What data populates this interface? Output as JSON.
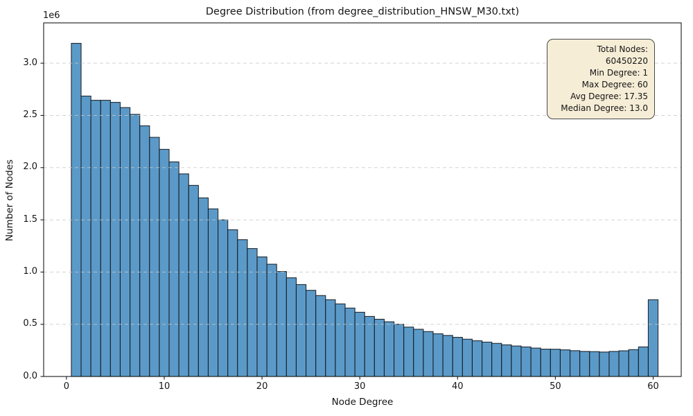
{
  "chart_data": {
    "type": "bar",
    "title": "Degree Distribution (from degree_distribution_HNSW_M30.txt)",
    "xlabel": "Node Degree",
    "ylabel": "Number of Nodes",
    "offset_label": "1e6",
    "x": [
      1,
      2,
      3,
      4,
      5,
      6,
      7,
      8,
      9,
      10,
      11,
      12,
      13,
      14,
      15,
      16,
      17,
      18,
      19,
      20,
      21,
      22,
      23,
      24,
      25,
      26,
      27,
      28,
      29,
      30,
      31,
      32,
      33,
      34,
      35,
      36,
      37,
      38,
      39,
      40,
      41,
      42,
      43,
      44,
      45,
      46,
      47,
      48,
      49,
      50,
      51,
      52,
      53,
      54,
      55,
      56,
      57,
      58,
      59,
      60
    ],
    "values": [
      3190000,
      2685000,
      2645000,
      2645000,
      2625000,
      2575000,
      2510000,
      2400000,
      2290000,
      2175000,
      2055000,
      1940000,
      1830000,
      1710000,
      1605000,
      1500000,
      1405000,
      1310000,
      1225000,
      1145000,
      1075000,
      1005000,
      945000,
      880000,
      825000,
      775000,
      735000,
      695000,
      655000,
      615000,
      575000,
      548000,
      524000,
      500000,
      473000,
      452000,
      430000,
      409000,
      393000,
      375000,
      357000,
      342000,
      329000,
      317000,
      303000,
      292000,
      283000,
      272000,
      262000,
      261000,
      255000,
      247000,
      240000,
      238000,
      234000,
      240000,
      246000,
      257000,
      283000,
      735000
    ],
    "bar_width": 1.0,
    "xticks": [
      0,
      10,
      20,
      30,
      40,
      50,
      60
    ],
    "xtick_labels": [
      "0",
      "10",
      "20",
      "30",
      "40",
      "50",
      "60"
    ],
    "ytick_values": [
      0,
      500000,
      1000000,
      1500000,
      2000000,
      2500000,
      3000000
    ],
    "ytick_labels": [
      "0.0",
      "0.5",
      "1.0",
      "1.5",
      "2.0",
      "2.5",
      "3.0"
    ],
    "xlim": [
      -2.33,
      62.87
    ],
    "ylim": [
      0,
      3386000
    ],
    "grid": "y-only, dashed",
    "colors": {
      "bar_fill": "#5b9ac8",
      "bar_edge": "#12161c",
      "grid": "#c8c8c8",
      "spine": "#1a1a1a",
      "box_face": "#f6edd6",
      "box_edge": "#4a4a4a"
    },
    "annotation_box": {
      "position": "top-right",
      "lines": [
        "Total Nodes: 60450220",
        "Min Degree: 1",
        "Max Degree: 60",
        "Avg Degree: 17.35",
        "Median Degree: 13.0"
      ]
    }
  }
}
